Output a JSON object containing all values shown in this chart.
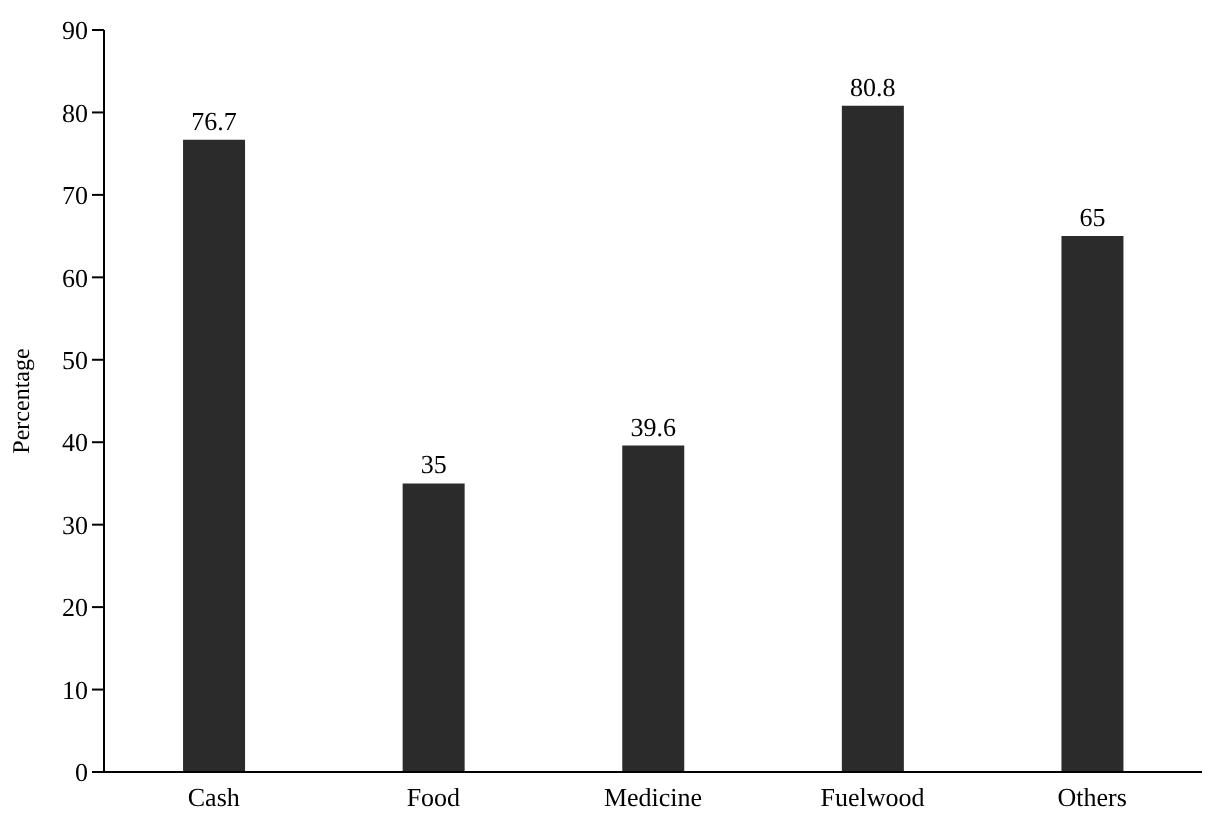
{
  "chart_data": {
    "type": "bar",
    "ylabel": "Percentage",
    "categories": [
      "Cash",
      "Food",
      "Medicine",
      "Fuelwood",
      "Others"
    ],
    "values": [
      76.7,
      35,
      39.6,
      80.8,
      65
    ],
    "color": "#2b2b2b",
    "ylim": [
      0,
      90
    ],
    "yticks": [
      0,
      10,
      20,
      30,
      40,
      50,
      60,
      70,
      80,
      90
    ],
    "grid": false,
    "data_labels": true
  }
}
